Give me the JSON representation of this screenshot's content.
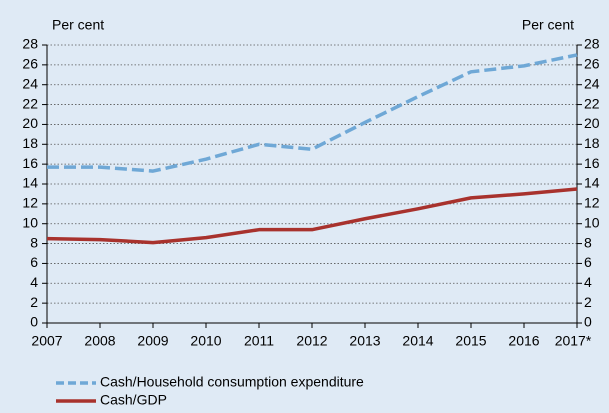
{
  "chart_data": {
    "type": "line",
    "y_label": "Per cent",
    "y2_label": "Per cent",
    "categories": [
      "2007",
      "2008",
      "2009",
      "2010",
      "2011",
      "2012",
      "2013",
      "2014",
      "2015",
      "2016",
      "2017*"
    ],
    "series": [
      {
        "name": "Cash/Household consumption expenditure",
        "color": "#6fa8d6",
        "dashed": true,
        "values": [
          15.7,
          15.7,
          15.3,
          16.5,
          18,
          17.5,
          20.2,
          22.8,
          25.3,
          25.9,
          27
        ]
      },
      {
        "name": "Cash/GDP",
        "color": "#a8322d",
        "dashed": false,
        "values": [
          8.5,
          8.4,
          8.1,
          8.6,
          9.4,
          9.4,
          10.5,
          11.5,
          12.6,
          13,
          13.5
        ]
      }
    ],
    "ylim": [
      0,
      28
    ],
    "yticks": [
      0,
      2,
      4,
      6,
      8,
      10,
      12,
      14,
      16,
      18,
      20,
      22,
      24,
      26,
      28
    ],
    "y2lim": [
      0,
      28
    ],
    "y2ticks": [
      0,
      2,
      4,
      6,
      8,
      10,
      12,
      14,
      16,
      18,
      20,
      22,
      24,
      26,
      28
    ],
    "grid": true,
    "legend": "bottom-left"
  }
}
